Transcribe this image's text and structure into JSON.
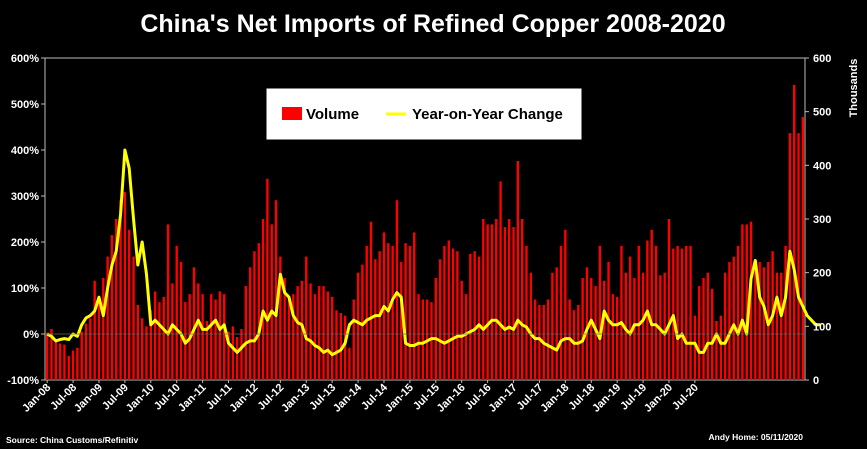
{
  "chart_data": {
    "type": "bar",
    "title": "China's Net Imports of Refined Copper 2008-2020",
    "y_left": {
      "ticks": [
        "-100%",
        "0%",
        "100%",
        "200%",
        "300%",
        "400%",
        "500%",
        "600%"
      ],
      "range": [
        -100,
        600
      ]
    },
    "y_right": {
      "label": "Thousands",
      "ticks": [
        "0",
        "100",
        "200",
        "300",
        "400",
        "500",
        "600"
      ],
      "range": [
        0,
        600
      ]
    },
    "x_tick_labels": [
      "Jan-08",
      "Jul-08",
      "Jan-09",
      "Jul-09",
      "Jan-10",
      "Jul-10",
      "Jan-11",
      "Jul-11",
      "Jan-12",
      "Jul-12",
      "Jan-13",
      "Jul-13",
      "Jan-14",
      "Jul-14",
      "Jan-15",
      "Jul-15",
      "Jan-16",
      "Jul-16",
      "Jan-17",
      "Jul-17",
      "Jan-18",
      "Jul-18",
      "Jan-19",
      "Jul-19",
      "Jan-20",
      "Jul-20"
    ],
    "grid": false,
    "legend_position": "top-center",
    "series": [
      {
        "name": "Volume",
        "axis": "right",
        "type": "bar",
        "color": "#ff0000",
        "values": [
          88,
          95,
          75,
          68,
          66,
          45,
          55,
          60,
          90,
          105,
          115,
          185,
          150,
          190,
          230,
          270,
          300,
          335,
          350,
          280,
          230,
          140,
          115,
          100,
          130,
          165,
          145,
          155,
          290,
          180,
          250,
          220,
          145,
          160,
          210,
          180,
          160,
          110,
          160,
          150,
          165,
          160,
          90,
          100,
          80,
          95,
          175,
          210,
          240,
          255,
          300,
          375,
          290,
          335,
          230,
          190,
          150,
          160,
          175,
          185,
          230,
          180,
          160,
          175,
          175,
          165,
          155,
          130,
          125,
          120,
          60,
          150,
          200,
          215,
          250,
          295,
          225,
          240,
          275,
          255,
          250,
          335,
          220,
          255,
          250,
          275,
          160,
          150,
          150,
          145,
          190,
          225,
          250,
          260,
          245,
          240,
          185,
          160,
          235,
          240,
          230,
          300,
          290,
          290,
          300,
          370,
          285,
          300,
          285,
          408,
          300,
          250,
          200,
          150,
          140,
          140,
          150,
          200,
          210,
          250,
          280,
          150,
          130,
          140,
          190,
          210,
          190,
          175,
          250,
          185,
          220,
          160,
          155,
          250,
          200,
          230,
          190,
          250,
          200,
          260,
          280,
          250,
          195,
          200,
          300,
          245,
          250,
          245,
          250,
          250,
          120,
          175,
          190,
          200,
          170,
          110,
          120,
          200,
          220,
          230,
          250,
          290,
          290,
          295,
          220,
          220,
          210,
          220,
          240,
          200,
          200,
          250,
          460,
          550,
          460,
          490
        ]
      },
      {
        "name": "Year-on-Year Change",
        "axis": "left",
        "type": "line",
        "color": "#ffff00",
        "values": [
          0,
          -5,
          -15,
          -12,
          -10,
          -12,
          0,
          -5,
          20,
          35,
          40,
          50,
          80,
          40,
          100,
          150,
          180,
          260,
          400,
          360,
          250,
          150,
          200,
          130,
          20,
          30,
          20,
          10,
          0,
          20,
          10,
          0,
          -20,
          -10,
          10,
          30,
          10,
          10,
          20,
          30,
          10,
          20,
          -20,
          -30,
          -40,
          -30,
          -20,
          -15,
          -15,
          0,
          50,
          30,
          50,
          40,
          130,
          90,
          80,
          40,
          25,
          20,
          -10,
          -15,
          -25,
          -30,
          -40,
          -35,
          -45,
          -40,
          -35,
          -20,
          20,
          30,
          25,
          20,
          30,
          35,
          40,
          40,
          60,
          50,
          75,
          90,
          80,
          -20,
          -25,
          -25,
          -20,
          -20,
          -15,
          -10,
          -10,
          -15,
          -20,
          -15,
          -10,
          -5,
          -5,
          0,
          5,
          10,
          20,
          10,
          20,
          30,
          30,
          20,
          10,
          15,
          10,
          30,
          20,
          15,
          0,
          -10,
          -10,
          -20,
          -25,
          -30,
          -35,
          -15,
          -10,
          -10,
          -20,
          -20,
          -15,
          10,
          30,
          10,
          -10,
          50,
          30,
          20,
          20,
          25,
          10,
          0,
          20,
          20,
          30,
          50,
          20,
          20,
          10,
          0,
          20,
          40,
          -10,
          0,
          -20,
          -20,
          -20,
          -40,
          -40,
          -20,
          -20,
          0,
          -20,
          -20,
          0,
          20,
          0,
          30,
          0,
          120,
          160,
          80,
          60,
          20,
          40,
          80,
          40,
          80,
          180,
          140,
          80,
          60,
          40,
          30,
          20,
          20
        ]
      }
    ],
    "annotations": {
      "source": "Source: China Customs/Refinitiv",
      "credit": "Andy Home: 05/11/2020"
    }
  }
}
